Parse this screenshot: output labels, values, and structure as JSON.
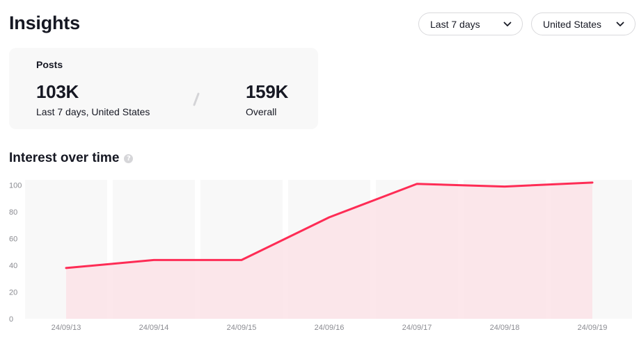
{
  "page": {
    "title": "Insights"
  },
  "filters": {
    "period": {
      "label": "Last 7 days"
    },
    "region": {
      "label": "United States"
    }
  },
  "posts": {
    "label": "Posts",
    "recent": {
      "value": "103K",
      "caption": "Last 7 days, United States"
    },
    "overall": {
      "value": "159K",
      "caption": "Overall"
    }
  },
  "interest": {
    "title": "Interest over time",
    "help": "?"
  },
  "colors": {
    "line": "#fe2c55",
    "area": "#fbe3e7",
    "column": "#f8f8f8"
  },
  "chart_data": {
    "type": "area",
    "title": "Interest over time",
    "categories": [
      "24/09/13",
      "24/09/14",
      "24/09/15",
      "24/09/16",
      "24/09/17",
      "24/09/18",
      "24/09/19"
    ],
    "series": [
      {
        "name": "Interest",
        "values": [
          38,
          44,
          44,
          76,
          101,
          99,
          102
        ]
      }
    ],
    "yticks": [
      0,
      20,
      40,
      60,
      80,
      100
    ],
    "ylim": [
      0,
      104
    ],
    "xlabel": "",
    "ylabel": ""
  }
}
